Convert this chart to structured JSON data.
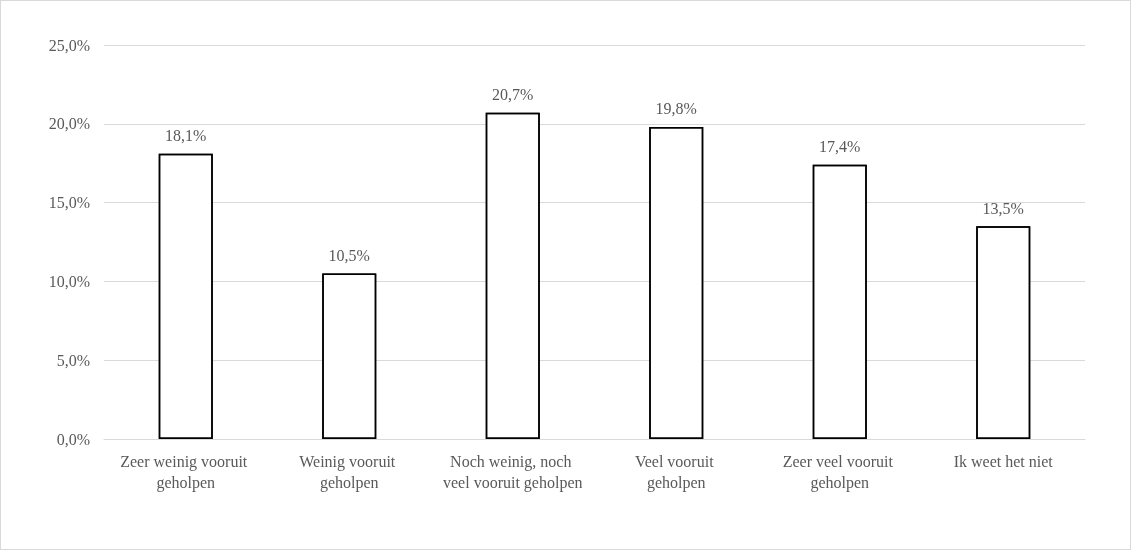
{
  "chart_data": {
    "type": "bar",
    "categories": [
      "Zeer weinig vooruit geholpen",
      "Weinig vooruit geholpen",
      "Noch weinig, noch veel vooruit geholpen",
      "Veel vooruit geholpen",
      "Zeer veel vooruit geholpen",
      "Ik weet het niet"
    ],
    "values": [
      18.1,
      10.5,
      20.7,
      19.8,
      17.4,
      13.5
    ],
    "value_labels": [
      "18,1%",
      "10,5%",
      "20,7%",
      "19,8%",
      "17,4%",
      "13,5%"
    ],
    "color": "#ffffff",
    "ylim": [
      0,
      25
    ],
    "yticks": [
      {
        "value": 0,
        "label": "0,0%"
      },
      {
        "value": 5,
        "label": "5,0%"
      },
      {
        "value": 10,
        "label": "10,0%"
      },
      {
        "value": 15,
        "label": "15,0%"
      },
      {
        "value": 20,
        "label": "20,0%"
      },
      {
        "value": 25,
        "label": "25,0%"
      }
    ],
    "grid": "y"
  }
}
